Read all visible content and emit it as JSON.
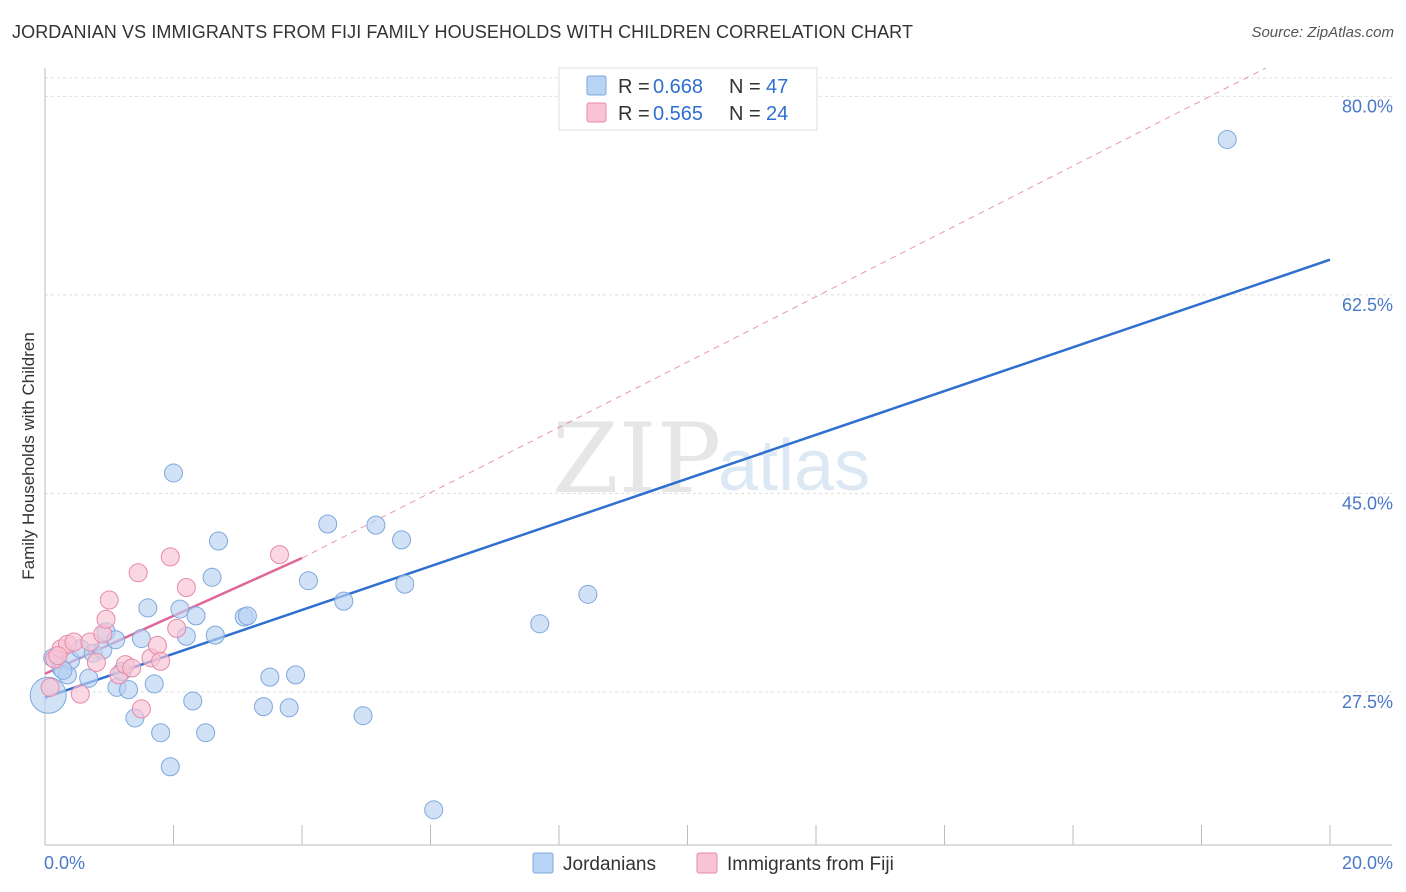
{
  "header": {
    "title": "JORDANIAN VS IMMIGRANTS FROM FIJI FAMILY HOUSEHOLDS WITH CHILDREN CORRELATION CHART",
    "source": "Source: ZipAtlas.com"
  },
  "watermark": {
    "zip": "ZIP",
    "atlas": "atlas"
  },
  "colors": {
    "blue_fill": "#b8d3f3",
    "blue_stroke": "#7ea8dc",
    "blue_line": "#2e6fd0",
    "pink_fill": "#f8c3d4",
    "pink_stroke": "#e88aa8",
    "pink_line": "#e0679a",
    "grid": "#dddddd",
    "tick_text": "#4a78c8"
  },
  "chart_data": {
    "type": "scatter",
    "title": "JORDANIAN VS IMMIGRANTS FROM FIJI FAMILY HOUSEHOLDS WITH CHILDREN CORRELATION CHART",
    "xlabel": "",
    "ylabel": "Family Households with Children",
    "xlim": [
      0,
      20
    ],
    "ylim": [
      14,
      82.5
    ],
    "x_tick_labels": [
      "0.0%",
      "20.0%"
    ],
    "y_ticks": [
      27.5,
      45.0,
      62.5,
      80.0
    ],
    "y_tick_labels": [
      "27.5%",
      "45.0%",
      "62.5%",
      "80.0%"
    ],
    "grid": true,
    "legend_position": "top-center",
    "stats": [
      {
        "r_label": "R =",
        "r_value": "0.668",
        "n_label": "N =",
        "n_value": "47"
      },
      {
        "r_label": "R =",
        "r_value": "0.565",
        "n_label": "N =",
        "n_value": "24"
      }
    ],
    "series": [
      {
        "name": "Jordanians",
        "points": [
          [
            0.05,
            27.2
          ],
          [
            0.12,
            30.5
          ],
          [
            0.25,
            29.6
          ],
          [
            0.35,
            29.0
          ],
          [
            0.4,
            30.3
          ],
          [
            0.55,
            31.3
          ],
          [
            0.68,
            28.7
          ],
          [
            0.75,
            30.9
          ],
          [
            0.9,
            31.2
          ],
          [
            0.95,
            32.8
          ],
          [
            1.1,
            32.1
          ],
          [
            1.12,
            27.9
          ],
          [
            1.3,
            27.7
          ],
          [
            1.4,
            25.2
          ],
          [
            1.5,
            32.2
          ],
          [
            1.6,
            34.9
          ],
          [
            1.7,
            28.2
          ],
          [
            1.8,
            23.9
          ],
          [
            1.95,
            20.9
          ],
          [
            2.0,
            46.8
          ],
          [
            2.1,
            34.8
          ],
          [
            2.2,
            32.4
          ],
          [
            2.3,
            26.7
          ],
          [
            2.35,
            34.2
          ],
          [
            2.5,
            23.9
          ],
          [
            2.6,
            37.6
          ],
          [
            2.65,
            32.5
          ],
          [
            2.7,
            40.8
          ],
          [
            3.1,
            34.1
          ],
          [
            3.15,
            34.2
          ],
          [
            3.4,
            26.2
          ],
          [
            3.5,
            28.8
          ],
          [
            3.8,
            26.1
          ],
          [
            3.9,
            29.0
          ],
          [
            4.1,
            37.3
          ],
          [
            4.4,
            42.3
          ],
          [
            4.65,
            35.5
          ],
          [
            4.95,
            25.4
          ],
          [
            5.15,
            42.2
          ],
          [
            5.55,
            40.9
          ],
          [
            5.6,
            37.0
          ],
          [
            6.05,
            17.1
          ],
          [
            7.7,
            33.5
          ],
          [
            8.45,
            36.1
          ],
          [
            18.4,
            76.2
          ],
          [
            0.28,
            29.4
          ],
          [
            1.2,
            29.3
          ]
        ]
      },
      {
        "name": "Immigrants from Fiji",
        "points": [
          [
            0.08,
            27.9
          ],
          [
            0.15,
            30.4
          ],
          [
            0.25,
            31.3
          ],
          [
            0.35,
            31.7
          ],
          [
            0.45,
            31.9
          ],
          [
            0.55,
            27.3
          ],
          [
            0.7,
            31.9
          ],
          [
            0.8,
            30.1
          ],
          [
            0.9,
            32.6
          ],
          [
            0.95,
            33.9
          ],
          [
            1.0,
            35.6
          ],
          [
            1.15,
            29.0
          ],
          [
            1.25,
            29.9
          ],
          [
            1.35,
            29.6
          ],
          [
            1.45,
            38.0
          ],
          [
            1.5,
            26.0
          ],
          [
            1.65,
            30.5
          ],
          [
            1.75,
            31.6
          ],
          [
            1.8,
            30.2
          ],
          [
            1.95,
            39.4
          ],
          [
            2.05,
            33.1
          ],
          [
            2.2,
            36.7
          ],
          [
            3.65,
            39.6
          ],
          [
            0.2,
            30.7
          ]
        ]
      }
    ],
    "trendlines": [
      {
        "series": "Jordanians",
        "x": [
          0.0,
          20.0
        ],
        "y": [
          27.0,
          65.6
        ],
        "style": "solid"
      },
      {
        "series": "Immigrants from Fiji",
        "x": [
          0.0,
          4.0
        ],
        "y": [
          29.1,
          39.3
        ],
        "style": "solid"
      },
      {
        "series": "Immigrants from Fiji",
        "x": [
          4.0,
          19.0
        ],
        "y": [
          39.3,
          82.5
        ],
        "style": "dashed"
      }
    ]
  }
}
